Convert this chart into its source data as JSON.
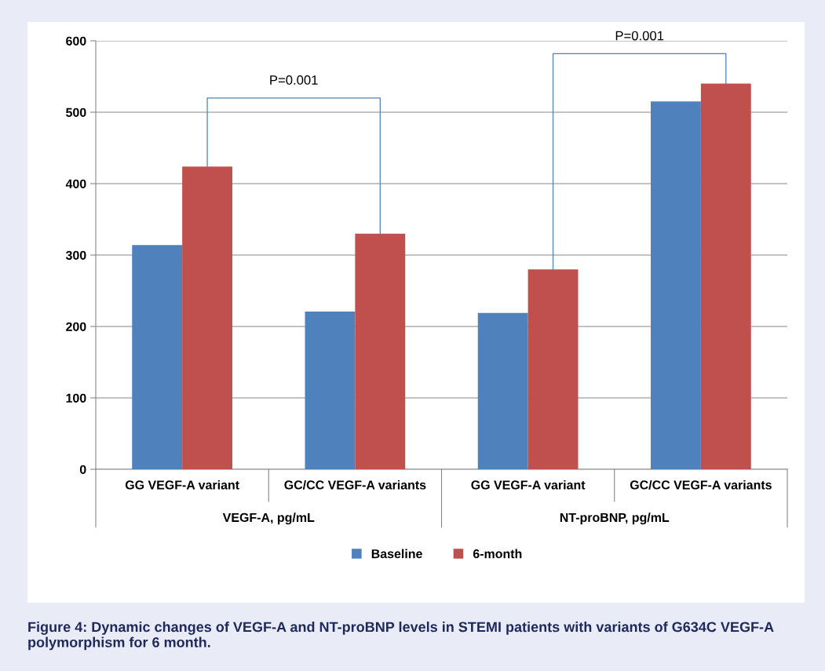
{
  "chart_data": {
    "type": "bar",
    "title": "Figure 4: Dynamic changes of VEGF-A and NT-proBNP levels in STEMI patients with variants of G634C VEGF-A polymorphism for 6 month.",
    "categories": [
      "GG VEGF-A variant",
      "GC/CC VEGF-A variants",
      "GG VEGF-A variant",
      "GC/CC VEGF-A variants"
    ],
    "series": [
      {
        "name": "Baseline",
        "color": "#4f81bd",
        "values": [
          314,
          221,
          219,
          515
        ]
      },
      {
        "name": "6-month",
        "color": "#c0504d",
        "values": [
          424,
          330,
          280,
          540
        ]
      }
    ],
    "annotations": [
      "P=0.001",
      "P=0.001",
      "VEGF-A, pg/mL",
      "NT-proBNP, pg/mL"
    ],
    "ylim": [
      0,
      600
    ],
    "yticks": [
      0,
      100,
      200,
      300,
      400,
      500,
      600
    ],
    "grid": "y",
    "legend": "bottom"
  }
}
